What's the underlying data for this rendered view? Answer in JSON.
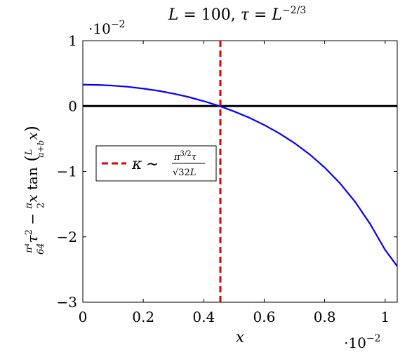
{
  "chart_data": {
    "type": "line",
    "title": "L = 100, τ = L^{−2/3}",
    "xlabel": "x",
    "ylabel": "π⁴/64 τ² − π/2 x tan(L/(a+b) x)",
    "x_scale_label": "·10⁻²",
    "y_scale_label": "·10⁻²",
    "xlim": [
      0,
      1.04
    ],
    "ylim": [
      -3,
      1
    ],
    "x_ticks": [
      0,
      0.2,
      0.4,
      0.6,
      0.8,
      1
    ],
    "x_tick_labels": [
      "0",
      "0.2",
      "0.4",
      "0.6",
      "0.8",
      "1"
    ],
    "y_ticks": [
      -3,
      -2,
      -1,
      0,
      1
    ],
    "y_tick_labels": [
      "−3",
      "−2",
      "−1",
      "0",
      "1"
    ],
    "grid": false,
    "legend_position": "center-left",
    "series": [
      {
        "name": "",
        "color": "#0000ff",
        "style": "solid",
        "x": [
          0,
          0.05,
          0.1,
          0.15,
          0.2,
          0.25,
          0.3,
          0.35,
          0.4,
          0.45,
          0.5,
          0.55,
          0.6,
          0.65,
          0.7,
          0.75,
          0.8,
          0.85,
          0.9,
          0.95,
          1.0,
          1.04
        ],
        "y": [
          0.327,
          0.323,
          0.312,
          0.294,
          0.267,
          0.233,
          0.19,
          0.138,
          0.075,
          0.003,
          -0.081,
          -0.177,
          -0.289,
          -0.417,
          -0.566,
          -0.738,
          -0.94,
          -1.178,
          -1.46,
          -1.8,
          -2.2,
          -2.45
        ]
      },
      {
        "name": "κ ∼ π^{3/2}τ / √(32L)",
        "color": "#dd0000",
        "style": "dashed",
        "vertical_x": 0.455
      },
      {
        "name": "",
        "color": "#000000",
        "style": "solid",
        "horizontal_y": 0
      }
    ]
  }
}
